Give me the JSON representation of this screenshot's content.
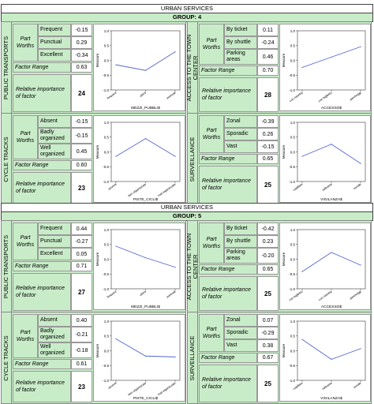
{
  "blocks": [
    {
      "title": "URBAN SERVICES",
      "group": "GROUP: 4",
      "factors": [
        {
          "name": "PUBLIC TRANSPORTS",
          "part_worths_label": "Part Worths",
          "levels": [
            {
              "label": "Frequent",
              "value": "-0.15"
            },
            {
              "label": "Punctual",
              "value": "0.29"
            },
            {
              "label": "Excellent",
              "value": "-0.34"
            }
          ],
          "factor_range_label": "Factor Range",
          "factor_range": "0.63",
          "rel_importance_label": "Relative importance of factor",
          "rel_importance": "24"
        },
        {
          "name": "ACCESS TO THE TOWN CENTER",
          "part_worths_label": "Part Worths",
          "levels": [
            {
              "label": "By ticket",
              "value": "0.11"
            },
            {
              "label": "By shuttle",
              "value": "-0.24"
            },
            {
              "label": "Parking areas",
              "value": "0.46"
            }
          ],
          "factor_range_label": "Factor Range",
          "factor_range": "0.70",
          "rel_importance_label": "Relative importance of factor",
          "rel_importance": "28"
        },
        {
          "name": "CYCLE TRACKS",
          "part_worths_label": "Part Worths",
          "levels": [
            {
              "label": "Absent",
              "value": "-0.15"
            },
            {
              "label": "Badly organized",
              "value": "-0.15"
            },
            {
              "label": "Well organized",
              "value": "0.45"
            }
          ],
          "factor_range_label": "Factor Range",
          "factor_range": "0.60",
          "rel_importance_label": "Relative importance of factor",
          "rel_importance": "23"
        },
        {
          "name": "SURVEILLANCE",
          "part_worths_label": "Part Worths",
          "levels": [
            {
              "label": "Zonal",
              "value": "-0.39"
            },
            {
              "label": "Sporadic",
              "value": "0.26"
            },
            {
              "label": "Vast",
              "value": "-0.15"
            }
          ],
          "factor_range_label": "Factor Range",
          "factor_range": "0.65",
          "rel_importance_label": "Relative importance of factor",
          "rel_importance": "25"
        }
      ]
    },
    {
      "title": "URBAN SERVICES",
      "group": "GROUP: 5",
      "factors": [
        {
          "name": "PUBLIC TRANSPORTS",
          "part_worths_label": "Part Worths",
          "levels": [
            {
              "label": "Frequent",
              "value": "0.44"
            },
            {
              "label": "Punctual",
              "value": "-0.27"
            },
            {
              "label": "Excellent",
              "value": "0.05"
            }
          ],
          "factor_range_label": "Factor Range",
          "factor_range": "0.71",
          "rel_importance_label": "Relative importance of factor",
          "rel_importance": "27"
        },
        {
          "name": "ACCESS TO THE TOWN CENTER",
          "part_worths_label": "Part Worths",
          "levels": [
            {
              "label": "By ticket",
              "value": "-0.42"
            },
            {
              "label": "By shuttle",
              "value": "0.23"
            },
            {
              "label": "Parking areas",
              "value": "-0.20"
            }
          ],
          "factor_range_label": "Factor Range",
          "factor_range": "0.65",
          "rel_importance_label": "Relative importance of factor",
          "rel_importance": "25"
        },
        {
          "name": "CYCLE TRACKS",
          "part_worths_label": "Part Worths",
          "levels": [
            {
              "label": "Absent",
              "value": "0.40"
            },
            {
              "label": "Badly organized",
              "value": "-0.21"
            },
            {
              "label": "Well organized",
              "value": "-0.18"
            }
          ],
          "factor_range_label": "Factor Range",
          "factor_range": "0.61",
          "rel_importance_label": "Relative importance of factor",
          "rel_importance": "23"
        },
        {
          "name": "SURVEILLANCE",
          "part_worths_label": "Part Worths",
          "levels": [
            {
              "label": "Zonal",
              "value": "0.07"
            },
            {
              "label": "Sporadic",
              "value": "-0.29"
            },
            {
              "label": "Vast",
              "value": "0.38"
            }
          ],
          "factor_range_label": "Factor Range",
          "factor_range": "0.67",
          "rel_importance_label": "Relative importance of factor",
          "rel_importance": "25"
        }
      ]
    }
  ],
  "chart_data": [
    {
      "type": "line",
      "title": "",
      "xlabel": "MEZZI_PUBBLI$",
      "ylabel": "Measure",
      "categories": [
        "frequent",
        "ottimi",
        "puntuali"
      ],
      "values": [
        -0.15,
        -0.34,
        0.29
      ],
      "ylim": [
        -1.0,
        1.0
      ],
      "yticks": [
        "1.0",
        "0.5",
        "0.0",
        "-0.5",
        "-1.0"
      ]
    },
    {
      "type": "line",
      "title": "",
      "xlabel": "ACCESSO$",
      "ylabel": "Measure",
      "categories": [
        "con navetta",
        "con biglietto",
        "parcheggi"
      ],
      "values": [
        -0.24,
        0.11,
        0.46
      ],
      "ylim": [
        -1.0,
        1.0
      ],
      "yticks": [
        "1.0",
        "0.5",
        "0.0",
        "-0.5",
        "-1.0"
      ]
    },
    {
      "type": "line",
      "title": "",
      "xlabel": "PISTE_CICLI$",
      "ylabel": "Measure",
      "categories": [
        "assenti",
        "ben organizzate",
        "mal organizzate"
      ],
      "values": [
        -0.15,
        0.45,
        -0.15
      ],
      "ylim": [
        -1.0,
        1.0
      ],
      "yticks": [
        "1.0",
        "0.5",
        "0.0",
        "-0.5",
        "-1.0"
      ]
    },
    {
      "type": "line",
      "title": "",
      "xlabel": "VIGILANZA$",
      "ylabel": "Measure",
      "categories": [
        "capillare",
        "saltuaria",
        "zonale"
      ],
      "values": [
        -0.15,
        0.26,
        -0.39
      ],
      "ylim": [
        -1.0,
        1.0
      ],
      "yticks": [
        "1.0",
        "0.5",
        "0.0",
        "-0.5",
        "-1.0"
      ]
    },
    {
      "type": "line",
      "title": "",
      "xlabel": "MEZZI_PUBBLI$",
      "ylabel": "Measure",
      "categories": [
        "frequent",
        "ottimi",
        "puntuali"
      ],
      "values": [
        0.44,
        0.05,
        -0.27
      ],
      "ylim": [
        -1.0,
        1.0
      ],
      "yticks": [
        "1.0",
        "0.5",
        "0.0",
        "-0.5",
        "-1.0"
      ]
    },
    {
      "type": "line",
      "title": "",
      "xlabel": "ACCESSO$",
      "ylabel": "Measure",
      "categories": [
        "con biglietto",
        "con navetta",
        "parcheggi"
      ],
      "values": [
        -0.42,
        0.23,
        -0.2
      ],
      "ylim": [
        -1.0,
        1.0
      ],
      "yticks": [
        "1.0",
        "0.5",
        "0.0",
        "-0.5",
        "-1.0"
      ]
    },
    {
      "type": "line",
      "title": "",
      "xlabel": "PISTE_CICLI$",
      "ylabel": "Measure",
      "categories": [
        "assenti",
        "ben organizzate",
        "mal organizzate"
      ],
      "values": [
        0.4,
        -0.18,
        -0.21
      ],
      "ylim": [
        -1.0,
        1.0
      ],
      "yticks": [
        "1.0",
        "0.5",
        "0.0",
        "-0.5",
        "-1.0"
      ]
    },
    {
      "type": "line",
      "title": "",
      "xlabel": "VIGILANZA$",
      "ylabel": "Measure",
      "categories": [
        "capillare",
        "saltuaria",
        "zonale"
      ],
      "values": [
        0.38,
        -0.29,
        0.07
      ],
      "ylim": [
        -1.0,
        1.0
      ],
      "yticks": [
        "1.0",
        "0.5",
        "0.0",
        "-0.5",
        "-1.0"
      ]
    }
  ]
}
